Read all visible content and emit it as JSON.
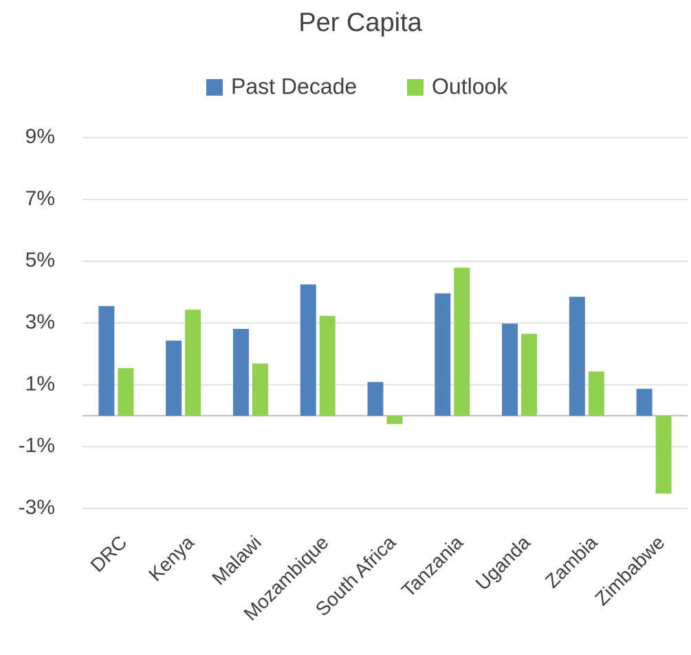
{
  "chart_data": {
    "type": "bar",
    "title": "Per Capita",
    "categories": [
      "DRC",
      "Kenya",
      "Malawi",
      "Mozambique",
      "South Africa",
      "Tanzania",
      "Uganda",
      "Zambia",
      "Zimbabwe"
    ],
    "series": [
      {
        "name": "Past Decade",
        "color": "#4f81bd",
        "values": [
          3.55,
          2.43,
          2.81,
          4.25,
          1.09,
          3.96,
          2.98,
          3.85,
          0.87
        ]
      },
      {
        "name": "Outlook",
        "color": "#92d050",
        "values": [
          1.54,
          3.43,
          1.69,
          3.23,
          -0.27,
          4.79,
          2.65,
          1.43,
          -2.52
        ]
      }
    ],
    "ylim": [
      -3,
      9
    ],
    "yticks": [
      {
        "value": -3,
        "label": "-3%"
      },
      {
        "value": -1,
        "label": "-1%"
      },
      {
        "value": 1,
        "label": "1%"
      },
      {
        "value": 3,
        "label": "3%"
      },
      {
        "value": 5,
        "label": "5%"
      },
      {
        "value": 7,
        "label": "7%"
      },
      {
        "value": 9,
        "label": "9%"
      }
    ],
    "grid": true,
    "legend": "top"
  }
}
